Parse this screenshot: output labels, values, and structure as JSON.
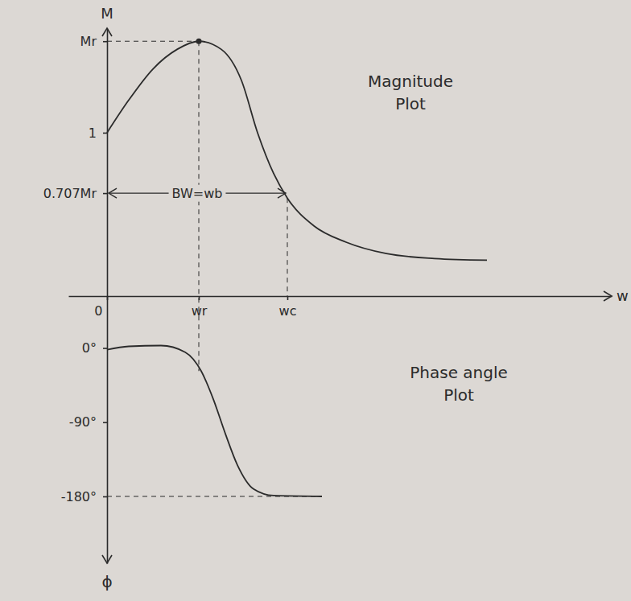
{
  "chart_data": [
    {
      "type": "line",
      "title": "Magnitude Plot",
      "x_label": "w",
      "y_label": "M",
      "x": [
        0,
        0.27,
        0.57,
        0.87,
        1.14,
        1.42,
        1.67,
        1.87,
        2.07,
        2.24,
        2.57,
        2.97,
        3.47,
        4.07,
        4.72
      ],
      "values": [
        1,
        1.2,
        1.39,
        1.51,
        1.56,
        1.51,
        1.32,
        1.0,
        0.75,
        0.6,
        0.43,
        0.33,
        0.26,
        0.23,
        0.22
      ],
      "xlim": [
        -0.48,
        6.27
      ],
      "ylim": [
        0,
        1.64
      ],
      "xticks": [
        0,
        {
          "value": 1.14,
          "label": "wr"
        },
        {
          "value": 2.24,
          "label": "wc"
        }
      ],
      "yticks": [
        {
          "value": 1.56,
          "label": "Mr"
        },
        1,
        {
          "value": 0.63,
          "label": "0.707Mr"
        }
      ],
      "annotations": [
        {
          "text": "BW=wb",
          "x": [
            0,
            2.24
          ],
          "y": 0.63
        }
      ],
      "grid": false
    },
    {
      "type": "line",
      "title": "Phase angle Plot",
      "y_label": "ϕ",
      "x": [
        0,
        0.27,
        0.67,
        0.97,
        1.17,
        1.32,
        1.47,
        1.62,
        1.82,
        2.07,
        2.67
      ],
      "values": [
        -2,
        2,
        3,
        -5,
        -28,
        -62,
        -104,
        -142,
        -171,
        -179,
        -180
      ],
      "xlim": [
        -0.48,
        6.27
      ],
      "ylim": [
        -261,
        63
      ],
      "yticks": [
        {
          "value": 0,
          "label": "0°"
        },
        {
          "value": -90,
          "label": "-90°"
        },
        {
          "value": -180,
          "label": "-180°"
        }
      ],
      "tick_labels": "y",
      "grid": false
    }
  ]
}
